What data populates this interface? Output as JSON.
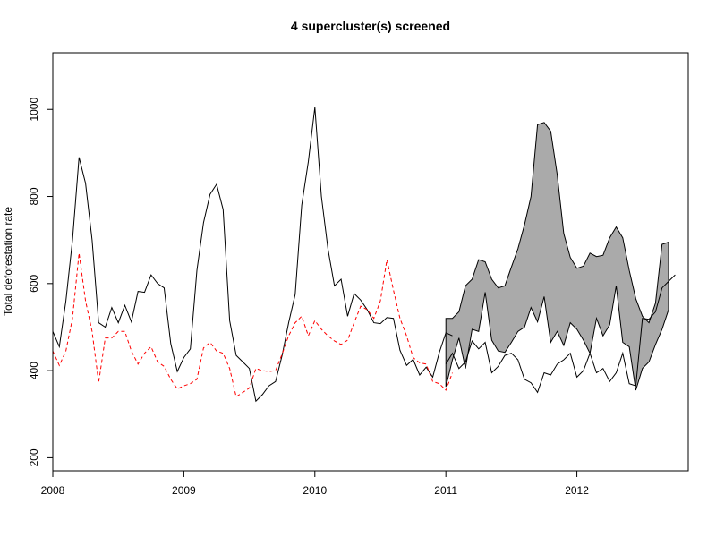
{
  "chart_data": {
    "type": "line",
    "title": "4 supercluster(s) screened",
    "xlabel": "",
    "ylabel": "Total deforestation rate",
    "xlim": [
      2008.0,
      2012.85
    ],
    "ylim": [
      170,
      1130
    ],
    "x_ticks": [
      2008,
      2009,
      2010,
      2011,
      2012
    ],
    "y_ticks": [
      200,
      400,
      600,
      800,
      1000
    ],
    "grid": false,
    "legend": "none",
    "colors": {
      "solid": "#000000",
      "dashed": "#ff0000",
      "band_fill": "#aaaaaa"
    },
    "series": [
      {
        "style": "solid",
        "color": "#000000",
        "x": [
          2008.0,
          2008.05,
          2008.1,
          2008.15,
          2008.2,
          2008.25,
          2008.3,
          2008.35,
          2008.4,
          2008.45,
          2008.5,
          2008.55,
          2008.6,
          2008.65,
          2008.7,
          2008.75,
          2008.8,
          2008.85,
          2008.9,
          2008.95,
          2009.0,
          2009.05,
          2009.1,
          2009.15,
          2009.2,
          2009.25,
          2009.3,
          2009.35,
          2009.4,
          2009.45,
          2009.5,
          2009.55,
          2009.6,
          2009.65,
          2009.7,
          2009.75,
          2009.8,
          2009.85,
          2009.9,
          2009.95,
          2010.0,
          2010.05,
          2010.1,
          2010.15,
          2010.2,
          2010.25,
          2010.3,
          2010.35,
          2010.4,
          2010.45,
          2010.5,
          2010.55,
          2010.6,
          2010.65,
          2010.7,
          2010.75,
          2010.8,
          2010.85,
          2010.9,
          2010.95,
          2011.0,
          2011.05
        ],
        "values": [
          490,
          455,
          560,
          700,
          890,
          830,
          700,
          510,
          500,
          545,
          510,
          550,
          512,
          582,
          580,
          620,
          600,
          590,
          462,
          398,
          430,
          450,
          630,
          740,
          805,
          828,
          770,
          515,
          435,
          420,
          405,
          330,
          345,
          365,
          375,
          435,
          510,
          575,
          780,
          880,
          1005,
          800,
          680,
          595,
          610,
          525,
          577,
          562,
          540,
          510,
          508,
          522,
          520,
          447,
          412,
          426,
          390,
          408,
          385,
          442,
          487,
          480
        ]
      },
      {
        "style": "dashed",
        "color": "#ff0000",
        "x": [
          2008.0,
          2008.05,
          2008.1,
          2008.15,
          2008.2,
          2008.25,
          2008.3,
          2008.35,
          2008.4,
          2008.45,
          2008.5,
          2008.55,
          2008.6,
          2008.65,
          2008.7,
          2008.75,
          2008.8,
          2008.85,
          2008.9,
          2008.95,
          2009.0,
          2009.05,
          2009.1,
          2009.15,
          2009.2,
          2009.25,
          2009.3,
          2009.35,
          2009.4,
          2009.45,
          2009.5,
          2009.55,
          2009.6,
          2009.65,
          2009.7,
          2009.75,
          2009.8,
          2009.85,
          2009.9,
          2009.95,
          2010.0,
          2010.05,
          2010.1,
          2010.15,
          2010.2,
          2010.25,
          2010.3,
          2010.35,
          2010.4,
          2010.45,
          2010.5,
          2010.55,
          2010.6,
          2010.65,
          2010.7,
          2010.75,
          2010.8,
          2010.85,
          2010.9,
          2010.95,
          2011.0,
          2011.05
        ],
        "values": [
          445,
          412,
          445,
          520,
          670,
          560,
          490,
          372,
          475,
          475,
          490,
          490,
          445,
          415,
          440,
          455,
          420,
          410,
          380,
          358,
          365,
          370,
          380,
          452,
          465,
          445,
          440,
          405,
          340,
          350,
          360,
          405,
          400,
          398,
          400,
          438,
          480,
          510,
          525,
          480,
          515,
          495,
          480,
          468,
          460,
          470,
          510,
          548,
          540,
          520,
          560,
          655,
          585,
          520,
          480,
          430,
          418,
          415,
          375,
          370,
          355,
          395
        ]
      },
      {
        "style": "solid",
        "color": "#000000",
        "x": [
          2011.0,
          2011.05,
          2011.1,
          2011.15,
          2011.2,
          2011.25,
          2011.3,
          2011.35,
          2011.4,
          2011.45,
          2011.5,
          2011.55,
          2011.6,
          2011.65,
          2011.7,
          2011.75,
          2011.8,
          2011.85,
          2011.9,
          2011.95,
          2012.0,
          2012.05,
          2012.1,
          2012.15,
          2012.2,
          2012.25,
          2012.3,
          2012.35,
          2012.4,
          2012.45,
          2012.5,
          2012.55,
          2012.6,
          2012.65,
          2012.7,
          2012.75
        ],
        "values": [
          415,
          440,
          405,
          420,
          468,
          450,
          465,
          395,
          410,
          435,
          440,
          425,
          380,
          372,
          350,
          395,
          390,
          415,
          425,
          440,
          385,
          400,
          440,
          395,
          405,
          375,
          395,
          440,
          370,
          365,
          520,
          518,
          535,
          590,
          605,
          620
        ]
      }
    ],
    "band": {
      "x": [
        2011.0,
        2011.05,
        2011.1,
        2011.15,
        2011.2,
        2011.25,
        2011.3,
        2011.35,
        2011.4,
        2011.45,
        2011.5,
        2011.55,
        2011.6,
        2011.65,
        2011.7,
        2011.75,
        2011.8,
        2011.85,
        2011.9,
        2011.95,
        2012.0,
        2012.05,
        2012.1,
        2012.15,
        2012.2,
        2012.25,
        2012.3,
        2012.35,
        2012.4,
        2012.45,
        2012.5,
        2012.55,
        2012.6,
        2012.65,
        2012.7
      ],
      "upper": [
        520,
        520,
        535,
        595,
        610,
        655,
        650,
        610,
        590,
        595,
        638,
        680,
        735,
        800,
        965,
        970,
        950,
        850,
        715,
        660,
        635,
        640,
        670,
        662,
        665,
        705,
        730,
        705,
        630,
        565,
        525,
        510,
        555,
        690,
        695
      ],
      "lower": [
        363,
        425,
        475,
        405,
        495,
        490,
        580,
        470,
        445,
        442,
        465,
        490,
        500,
        545,
        512,
        570,
        465,
        490,
        458,
        510,
        495,
        470,
        440,
        520,
        480,
        505,
        595,
        465,
        455,
        355,
        405,
        420,
        460,
        495,
        540
      ]
    }
  }
}
